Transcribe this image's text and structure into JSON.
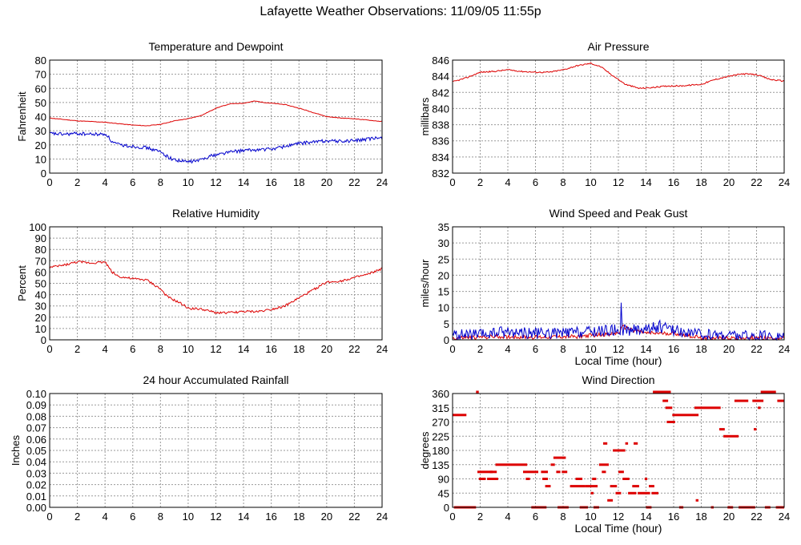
{
  "page": {
    "title": "Lafayette Weather Observations: 11/09/05 11:55p"
  },
  "colors": {
    "red": "#dd0000",
    "blue": "#0000cc",
    "grid": "#9a9a9a"
  },
  "chart_data": [
    {
      "id": "temperature",
      "type": "line",
      "title": "Temperature and Dewpoint",
      "xlabel": "",
      "ylabel": "Fahrenheit",
      "xlim": [
        0,
        24
      ],
      "ylim": [
        0,
        80
      ],
      "xticks": [
        0,
        2,
        4,
        6,
        8,
        10,
        12,
        14,
        16,
        18,
        20,
        22,
        24
      ],
      "yticks": [
        0,
        10,
        20,
        30,
        40,
        50,
        60,
        70,
        80
      ],
      "grid": true,
      "series": [
        {
          "color": "#dd0000",
          "noise": 0.2,
          "points": [
            [
              0,
              39
            ],
            [
              1,
              38
            ],
            [
              2,
              37
            ],
            [
              3,
              36.5
            ],
            [
              4,
              36
            ],
            [
              5,
              35
            ],
            [
              6,
              34
            ],
            [
              7,
              33.5
            ],
            [
              8,
              34.5
            ],
            [
              9,
              37
            ],
            [
              10,
              38.5
            ],
            [
              11,
              41
            ],
            [
              12,
              46
            ],
            [
              13,
              49
            ],
            [
              14,
              49.5
            ],
            [
              14.8,
              51
            ],
            [
              15.5,
              50
            ],
            [
              17,
              48.5
            ],
            [
              18,
              46
            ],
            [
              19,
              43
            ],
            [
              20,
              40
            ],
            [
              21,
              39
            ],
            [
              22,
              38.5
            ],
            [
              23,
              37.5
            ],
            [
              24,
              36.5
            ]
          ]
        },
        {
          "color": "#0000cc",
          "noise": 1.2,
          "points": [
            [
              0,
              28
            ],
            [
              1,
              27.5
            ],
            [
              2,
              28
            ],
            [
              3,
              27.5
            ],
            [
              4.1,
              27.5
            ],
            [
              4.5,
              22
            ],
            [
              5,
              20
            ],
            [
              6,
              19
            ],
            [
              7,
              18
            ],
            [
              8,
              15
            ],
            [
              8.8,
              10
            ],
            [
              9.5,
              8.5
            ],
            [
              10,
              8
            ],
            [
              10.8,
              9
            ],
            [
              11.5,
              12
            ],
            [
              12,
              13
            ],
            [
              13,
              15
            ],
            [
              14,
              16
            ],
            [
              15,
              16.5
            ],
            [
              16,
              17
            ],
            [
              17,
              19
            ],
            [
              18,
              21
            ],
            [
              19,
              22
            ],
            [
              20,
              23
            ],
            [
              21,
              22.5
            ],
            [
              22,
              23
            ],
            [
              23,
              24
            ],
            [
              24,
              25
            ]
          ]
        }
      ]
    },
    {
      "id": "pressure",
      "type": "line",
      "title": "Air Pressure",
      "xlabel": "",
      "ylabel": "millibars",
      "xlim": [
        0,
        24
      ],
      "ylim": [
        832,
        846
      ],
      "xticks": [
        0,
        2,
        4,
        6,
        8,
        10,
        12,
        14,
        16,
        18,
        20,
        22,
        24
      ],
      "yticks": [
        832,
        834,
        836,
        838,
        840,
        842,
        844,
        846
      ],
      "grid": true,
      "series": [
        {
          "color": "#dd0000",
          "noise": 0.08,
          "points": [
            [
              0,
              843.3
            ],
            [
              1,
              843.8
            ],
            [
              2,
              844.5
            ],
            [
              3,
              844.6
            ],
            [
              4,
              844.8
            ],
            [
              5,
              844.6
            ],
            [
              6,
              844.5
            ],
            [
              7,
              844.5
            ],
            [
              8,
              844.8
            ],
            [
              9,
              845.3
            ],
            [
              10,
              845.6
            ],
            [
              10.7,
              845.2
            ],
            [
              11.5,
              844.2
            ],
            [
              12.5,
              843
            ],
            [
              13.5,
              842.5
            ],
            [
              14.5,
              842.6
            ],
            [
              15.5,
              842.8
            ],
            [
              16.5,
              842.8
            ],
            [
              18,
              843
            ],
            [
              19,
              843.6
            ],
            [
              20,
              844
            ],
            [
              21,
              844.3
            ],
            [
              22,
              844.2
            ],
            [
              23,
              843.6
            ],
            [
              24,
              843.4
            ]
          ]
        }
      ]
    },
    {
      "id": "humidity",
      "type": "line",
      "title": "Relative Humidity",
      "xlabel": "",
      "ylabel": "Percent",
      "xlim": [
        0,
        24
      ],
      "ylim": [
        0,
        100
      ],
      "xticks": [
        0,
        2,
        4,
        6,
        8,
        10,
        12,
        14,
        16,
        18,
        20,
        22,
        24
      ],
      "yticks": [
        0,
        10,
        20,
        30,
        40,
        50,
        60,
        70,
        80,
        90,
        100
      ],
      "grid": true,
      "series": [
        {
          "color": "#dd0000",
          "noise": 1.0,
          "points": [
            [
              0,
              64
            ],
            [
              1,
              66
            ],
            [
              2,
              69
            ],
            [
              3,
              68
            ],
            [
              4,
              69
            ],
            [
              4.5,
              60
            ],
            [
              5,
              56
            ],
            [
              6,
              54
            ],
            [
              7,
              53
            ],
            [
              8,
              45
            ],
            [
              8.5,
              38
            ],
            [
              9,
              35
            ],
            [
              9.5,
              32
            ],
            [
              10,
              28
            ],
            [
              11,
              27
            ],
            [
              12,
              24
            ],
            [
              13,
              24
            ],
            [
              14,
              25
            ],
            [
              15,
              25
            ],
            [
              16,
              27
            ],
            [
              17,
              30
            ],
            [
              18,
              37
            ],
            [
              19,
              44
            ],
            [
              20,
              51
            ],
            [
              21,
              52
            ],
            [
              22,
              55
            ],
            [
              23,
              58
            ],
            [
              24,
              63
            ]
          ]
        }
      ]
    },
    {
      "id": "wind-speed",
      "type": "line",
      "title": "Wind Speed and Peak Gust",
      "xlabel": "Local Time (hour)",
      "ylabel": "miles/hour",
      "xlim": [
        0,
        24
      ],
      "ylim": [
        0,
        35
      ],
      "xticks": [
        0,
        2,
        4,
        6,
        8,
        10,
        12,
        14,
        16,
        18,
        20,
        22,
        24
      ],
      "yticks": [
        0,
        5,
        10,
        15,
        20,
        25,
        30,
        35
      ],
      "grid": true,
      "series": [
        {
          "color": "#dd0000",
          "noise": 0.6,
          "points": [
            [
              0,
              0.5
            ],
            [
              3,
              1
            ],
            [
              6,
              0.8
            ],
            [
              9,
              1
            ],
            [
              12,
              2
            ],
            [
              12.3,
              4
            ],
            [
              14,
              2
            ],
            [
              16,
              2
            ],
            [
              18,
              0.6
            ],
            [
              21,
              0.6
            ],
            [
              24,
              0.5
            ]
          ]
        },
        {
          "color": "#0000cc",
          "noise": 1.8,
          "peaks": [
            [
              12.2,
              11.5
            ],
            [
              15,
              6
            ],
            [
              3.5,
              4
            ]
          ],
          "points": [
            [
              0,
              1.5
            ],
            [
              2,
              1.5
            ],
            [
              4,
              2.5
            ],
            [
              6,
              2
            ],
            [
              8,
              2
            ],
            [
              10,
              2.5
            ],
            [
              12,
              3
            ],
            [
              13,
              3
            ],
            [
              15,
              4
            ],
            [
              16,
              3
            ],
            [
              18,
              1.5
            ],
            [
              20,
              1.5
            ],
            [
              22,
              1
            ],
            [
              24,
              1
            ]
          ]
        }
      ]
    },
    {
      "id": "rainfall",
      "type": "line",
      "title": "24 hour Accumulated Rainfall",
      "xlabel": "",
      "ylabel": "Inches",
      "xlim": [
        0,
        24
      ],
      "ylim": [
        0,
        0.1
      ],
      "xticks": [
        0,
        2,
        4,
        6,
        8,
        10,
        12,
        14,
        16,
        18,
        20,
        22,
        24
      ],
      "yticks": [
        "0.00",
        "0.01",
        "0.02",
        "0.03",
        "0.04",
        "0.05",
        "0.06",
        "0.07",
        "0.08",
        "0.09",
        "0.10"
      ],
      "grid": true,
      "series": [
        {
          "color": "#dd0000",
          "noise": 0,
          "points": [
            [
              0,
              0
            ],
            [
              24,
              0
            ]
          ]
        }
      ]
    },
    {
      "id": "wind-direction",
      "type": "scatter",
      "title": "Wind Direction",
      "xlabel": "Local Time (hour)",
      "ylabel": "degrees",
      "xlim": [
        0,
        24
      ],
      "ylim": [
        0,
        360
      ],
      "xticks": [
        0,
        2,
        4,
        6,
        8,
        10,
        12,
        14,
        16,
        18,
        20,
        22,
        24
      ],
      "yticks": [
        0,
        45,
        90,
        135,
        180,
        225,
        270,
        315,
        360
      ],
      "grid": true,
      "series": [
        {
          "color": "#dd0000",
          "runs": [
            [
              0,
              1,
              292
            ],
            [
              0.1,
              1.7,
              0
            ],
            [
              1.7,
              1.9,
              365
            ],
            [
              1.8,
              2.9,
              112
            ],
            [
              1.9,
              2.4,
              90
            ],
            [
              2.5,
              3.3,
              90
            ],
            [
              2.7,
              3.2,
              112
            ],
            [
              3.1,
              5.4,
              135
            ],
            [
              5.1,
              6.2,
              112
            ],
            [
              5.3,
              5.6,
              90
            ],
            [
              5.7,
              6.8,
              0
            ],
            [
              6.4,
              6.9,
              112
            ],
            [
              6.5,
              6.9,
              90
            ],
            [
              6.7,
              7.1,
              67
            ],
            [
              7.1,
              7.4,
              135
            ],
            [
              7.3,
              8.2,
              157
            ],
            [
              7.5,
              7.8,
              112
            ],
            [
              7.6,
              8.4,
              0
            ],
            [
              7.9,
              8.3,
              112
            ],
            [
              8.5,
              9.6,
              67
            ],
            [
              8.9,
              9.4,
              90
            ],
            [
              9.2,
              9.8,
              0
            ],
            [
              9.6,
              10.5,
              67
            ],
            [
              10.0,
              10.2,
              45
            ],
            [
              10.1,
              10.4,
              90
            ],
            [
              10.2,
              10.6,
              0
            ],
            [
              10.6,
              11.3,
              135
            ],
            [
              10.8,
              11.1,
              112
            ],
            [
              10.9,
              11.2,
              202
            ],
            [
              11.2,
              11.6,
              22
            ],
            [
              11.4,
              11.9,
              67
            ],
            [
              11.6,
              12.5,
              180
            ],
            [
              11.8,
              12.2,
              45
            ],
            [
              12.0,
              12.4,
              112
            ],
            [
              12.3,
              12.8,
              90
            ],
            [
              12.5,
              12.7,
              202
            ],
            [
              12.7,
              13.3,
              45
            ],
            [
              13.0,
              13.5,
              67
            ],
            [
              13.1,
              13.4,
              202
            ],
            [
              13.4,
              14.3,
              45
            ],
            [
              13.9,
              14.1,
              90
            ],
            [
              14.0,
              14.4,
              0
            ],
            [
              14.2,
              14.6,
              67
            ],
            [
              14.4,
              14.9,
              45
            ],
            [
              14.5,
              15.8,
              365
            ],
            [
              15.2,
              15.6,
              337
            ],
            [
              15.4,
              15.9,
              315
            ],
            [
              15.5,
              16.1,
              270
            ],
            [
              15.9,
              17.8,
              292
            ],
            [
              16.4,
              16.7,
              0
            ],
            [
              17.5,
              19.4,
              315
            ],
            [
              17.6,
              17.8,
              22
            ],
            [
              18.7,
              18.9,
              0
            ],
            [
              19.3,
              19.7,
              247
            ],
            [
              19.6,
              20.7,
              225
            ],
            [
              19.9,
              20.3,
              0
            ],
            [
              20.4,
              21.4,
              337
            ],
            [
              20.7,
              21.9,
              0
            ],
            [
              21.8,
              22.0,
              247
            ],
            [
              21.7,
              22.5,
              337
            ],
            [
              22.1,
              22.3,
              315
            ],
            [
              22.3,
              23.4,
              365
            ],
            [
              22.6,
              23.0,
              0
            ],
            [
              23.4,
              24,
              0
            ],
            [
              23.5,
              24,
              337
            ]
          ]
        }
      ]
    }
  ]
}
